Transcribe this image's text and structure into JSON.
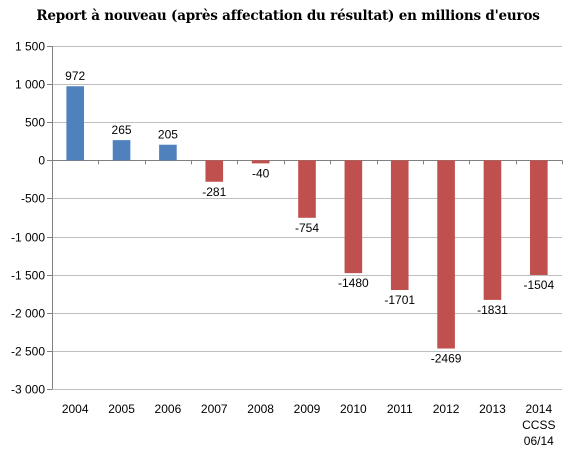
{
  "chart_data": {
    "type": "bar",
    "title": "Report à nouveau (après affectation du résultat) en millions d'euros",
    "categories": [
      "2004",
      "2005",
      "2006",
      "2007",
      "2008",
      "2009",
      "2010",
      "2011",
      "2012",
      "2013",
      "2014"
    ],
    "category_sublabels": {
      "2014": [
        "CCSS",
        "06/14"
      ]
    },
    "values": [
      972,
      265,
      205,
      -281,
      -40,
      -754,
      -1480,
      -1701,
      -2469,
      -1831,
      -1504
    ],
    "data_labels": [
      "972",
      "265",
      "205",
      "-281",
      "-40",
      "-754",
      "-1480",
      "-1701",
      "-2469",
      "-1831",
      "-1504"
    ],
    "y_ticks": [
      1500,
      1000,
      500,
      0,
      -500,
      -1000,
      -1500,
      -2000,
      -2500,
      -3000
    ],
    "y_tick_labels": [
      "1 500",
      "1 000",
      "500",
      "0",
      "-500",
      "-1 000",
      "-1 500",
      "-2 000",
      "-2 500",
      "-3 000"
    ],
    "ylim": [
      -3000,
      1500
    ],
    "grid": true,
    "colors": {
      "positive": "#4f81bd",
      "negative": "#c0504d",
      "grid": "#bfbfbf",
      "axis": "#808080"
    }
  }
}
